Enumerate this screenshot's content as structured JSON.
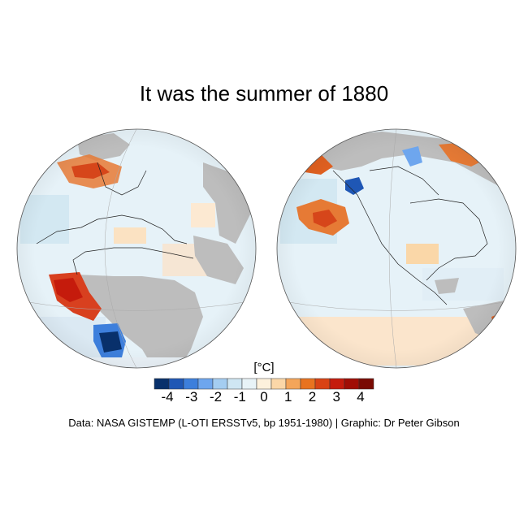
{
  "title": "It was the summer of 1880",
  "colorbar": {
    "unit": "[°C]",
    "ticks": [
      "-4",
      "-3",
      "-2",
      "-1",
      "0",
      "1",
      "2",
      "3",
      "4"
    ],
    "colors": [
      "#08306b",
      "#1f57b5",
      "#3d7fdc",
      "#6ea6ee",
      "#a4cdf1",
      "#cfe6f3",
      "#e8f3f7",
      "#fdf1dc",
      "#fbd7a8",
      "#f4a55a",
      "#e8731f",
      "#d94314",
      "#c51b0c",
      "#a00d05",
      "#7a0a03"
    ]
  },
  "credit": "Data: NASA GISTEMP (L-OTI ERSSTv5, bp 1951-1980)  |  Graphic: Dr Peter Gibson",
  "colors": {
    "land_nodata": "#bdbdbd",
    "ocean_base": "#e6f2f8"
  }
}
